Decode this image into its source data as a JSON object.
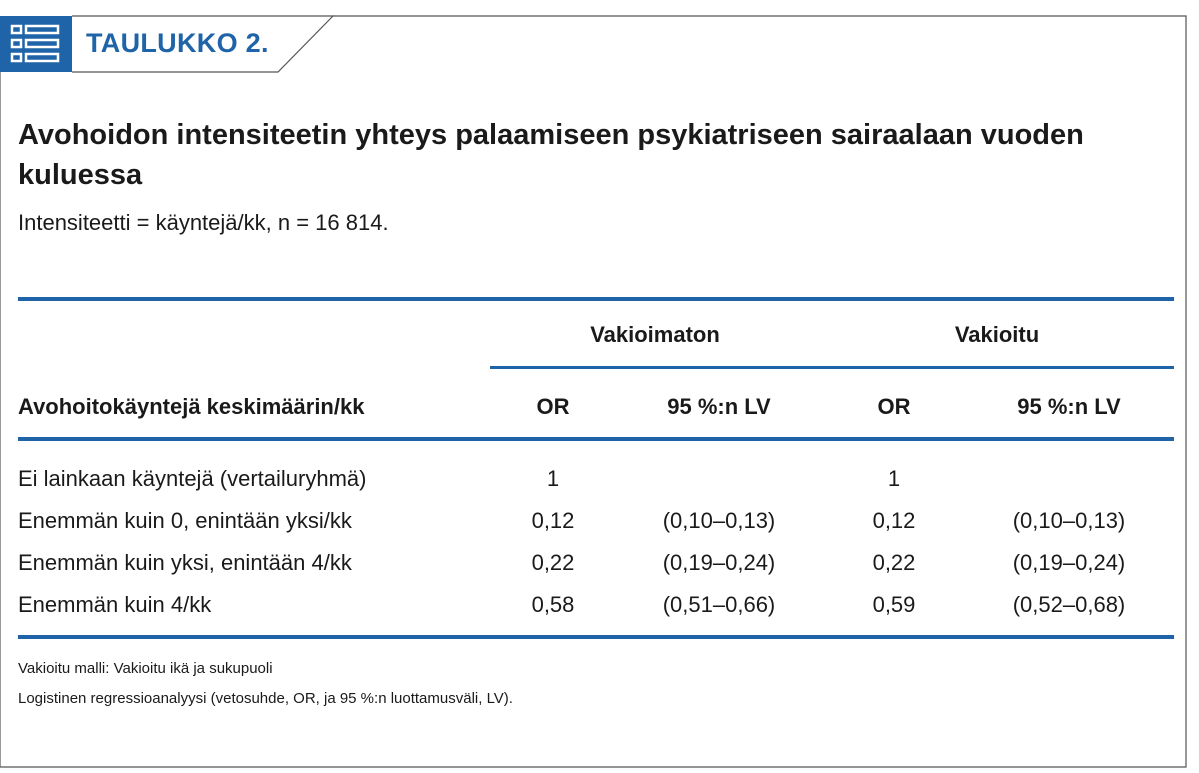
{
  "badge": {
    "label": "TAULUKKO 2.",
    "icon": "table-list-icon"
  },
  "title": "Avohoidon intensiteetin yhteys palaamiseen psykiatriseen sairaalaan vuoden kuluessa",
  "subtitle": "Intensiteetti = käyntejä/kk, n = 16 814.",
  "colors": {
    "accent": "#1f64a8",
    "text": "#1a1a1a",
    "border": "#555555"
  },
  "table": {
    "group_headers": [
      "Vakioimaton",
      "Vakioitu"
    ],
    "columns": [
      "Avohoitokäyntejä keskimäärin/kk",
      "OR",
      "95 %:n LV",
      "OR",
      "95 %:n LV"
    ],
    "rows": [
      [
        "Ei lainkaan käyntejä (vertailuryhmä)",
        "1",
        "",
        "1",
        ""
      ],
      [
        "Enemmän kuin 0, enintään yksi/kk",
        "0,12",
        "(0,10–0,13)",
        "0,12",
        "(0,10–0,13)"
      ],
      [
        "Enemmän kuin yksi, enintään 4/kk",
        "0,22",
        "(0,19–0,24)",
        "0,22",
        "(0,19–0,24)"
      ],
      [
        "Enemmän kuin 4/kk",
        "0,58",
        "(0,51–0,66)",
        "0,59",
        "(0,52–0,68)"
      ]
    ]
  },
  "footnotes": [
    "Vakioitu malli: Vakioitu ikä ja sukupuoli",
    "Logistinen regressioanalyysi (vetosuhde, OR, ja 95 %:n luottamusväli, LV)."
  ]
}
